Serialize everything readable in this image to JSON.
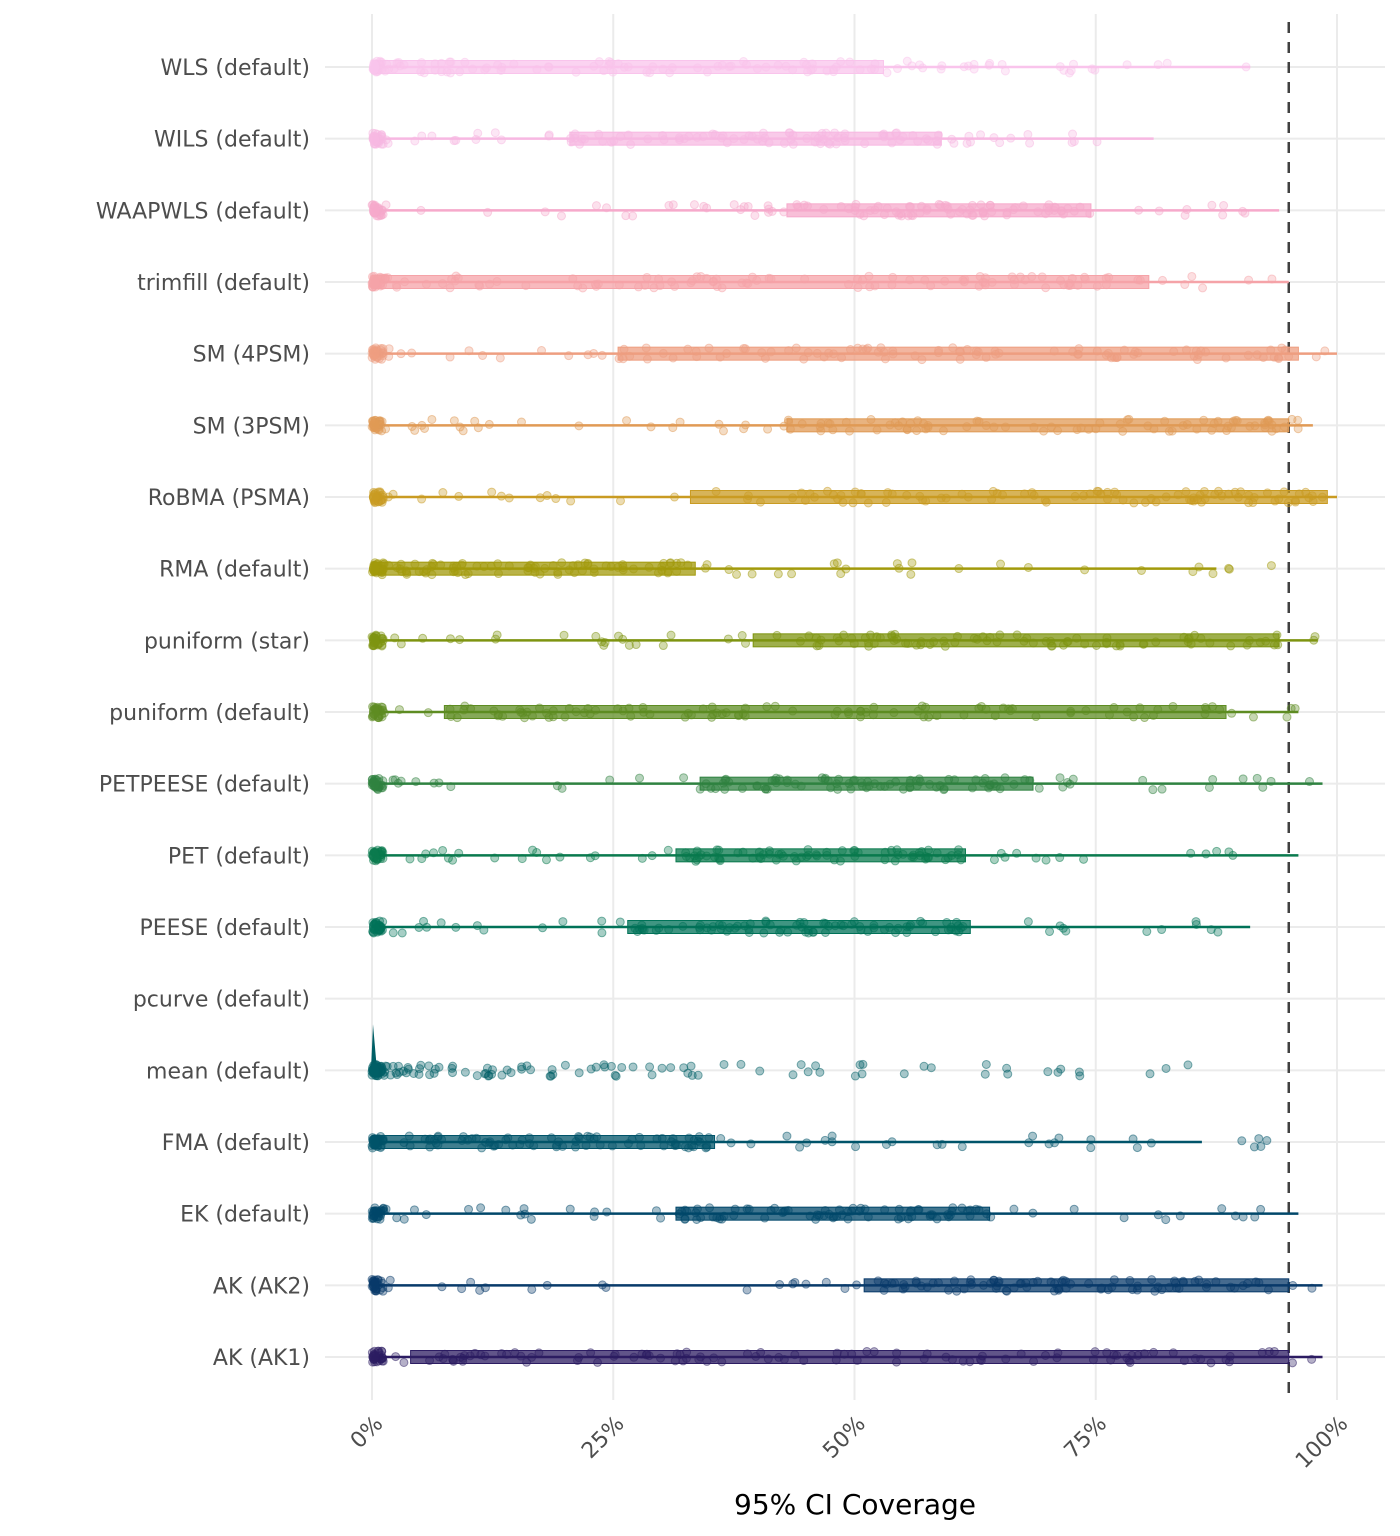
{
  "chart_data": {
    "type": "boxplot-jitter",
    "title": "",
    "xlabel": "95% CI Coverage",
    "ylabel": "",
    "xlim": [
      0,
      100
    ],
    "x_unit": "%",
    "x_ticks": [
      0,
      25,
      50,
      75,
      100
    ],
    "x_tick_labels": [
      "0%",
      "25%",
      "50%",
      "75%",
      "100%"
    ],
    "grid": true,
    "reference_line": {
      "value": 95,
      "style": "dashed",
      "color": "#404040"
    },
    "categories": [
      "WLS (default)",
      "WILS (default)",
      "WAAPWLS (default)",
      "trimfill (default)",
      "SM (4PSM)",
      "SM (3PSM)",
      "RoBMA (PSMA)",
      "RMA (default)",
      "puniform (star)",
      "puniform (default)",
      "PETPEESE (default)",
      "PET (default)",
      "PEESE (default)",
      "pcurve (default)",
      "mean (default)",
      "FMA (default)",
      "EK (default)",
      "AK (AK2)",
      "AK (AK1)"
    ],
    "series": [
      {
        "name": "WLS (default)",
        "color": "#F9C4EC",
        "whisker_low": 0,
        "q1": 0,
        "median": 28,
        "q3": 53,
        "whisker_high": 91,
        "point_max": 91
      },
      {
        "name": "WILS (default)",
        "color": "#F7B8E2",
        "whisker_low": 0,
        "q1": 20.5,
        "median": 40,
        "q3": 59,
        "whisker_high": 81,
        "point_max": 81
      },
      {
        "name": "WAAPWLS (default)",
        "color": "#F6A9CB",
        "whisker_low": 0,
        "q1": 43,
        "median": 60,
        "q3": 74.5,
        "whisker_high": 94,
        "point_max": 94
      },
      {
        "name": "trimfill (default)",
        "color": "#F5A3A8",
        "whisker_low": 0,
        "q1": 0,
        "median": 40,
        "q3": 80.5,
        "whisker_high": 95,
        "point_max": 95
      },
      {
        "name": "SM (4PSM)",
        "color": "#EE9E80",
        "whisker_low": 0,
        "q1": 25.5,
        "median": 80,
        "q3": 96,
        "whisker_high": 100,
        "point_max": 100
      },
      {
        "name": "SM (3PSM)",
        "color": "#E09A55",
        "whisker_low": 0,
        "q1": 43,
        "median": 80,
        "q3": 95,
        "whisker_high": 97.5,
        "point_max": 97.5
      },
      {
        "name": "RoBMA (PSMA)",
        "color": "#C99B22",
        "whisker_low": 0,
        "q1": 33,
        "median": 80,
        "q3": 99,
        "whisker_high": 100,
        "point_max": 100
      },
      {
        "name": "RMA (default)",
        "color": "#A29A0B",
        "whisker_low": 0,
        "q1": 0,
        "median": 5,
        "q3": 33.5,
        "whisker_high": 87.5,
        "point_max": 94
      },
      {
        "name": "puniform (star)",
        "color": "#7E9410",
        "whisker_low": 0,
        "q1": 39.5,
        "median": 75,
        "q3": 94,
        "whisker_high": 98,
        "point_max": 98
      },
      {
        "name": "puniform (default)",
        "color": "#5E8C22",
        "whisker_low": 0,
        "q1": 7.5,
        "median": 50,
        "q3": 88.5,
        "whisker_high": 96,
        "point_max": 96
      },
      {
        "name": "PETPEESE (default)",
        "color": "#2F8240",
        "whisker_low": 0,
        "q1": 34,
        "median": 50,
        "q3": 68.5,
        "whisker_high": 98.5,
        "point_max": 98.5
      },
      {
        "name": "PET (default)",
        "color": "#0A7A4E",
        "whisker_low": 0,
        "q1": 31.5,
        "median": 48,
        "q3": 61.5,
        "whisker_high": 96,
        "point_max": 96
      },
      {
        "name": "PEESE (default)",
        "color": "#007258",
        "whisker_low": 0,
        "q1": 26.5,
        "median": 45,
        "q3": 62,
        "whisker_high": 91,
        "point_max": 91
      },
      {
        "name": "pcurve (default)",
        "color": "#006A62",
        "empty": true
      },
      {
        "name": "mean (default)",
        "color": "#005F66",
        "whisker_low": 0,
        "q1": 0,
        "median": 0,
        "q3": 0,
        "whisker_high": 0,
        "point_max": 85.5,
        "spike": true
      },
      {
        "name": "FMA (default)",
        "color": "#00546A",
        "whisker_low": 0,
        "q1": 0,
        "median": 10,
        "q3": 35.5,
        "whisker_high": 86,
        "point_max": 97.5
      },
      {
        "name": "EK (default)",
        "color": "#00476A",
        "whisker_low": 0,
        "q1": 31.5,
        "median": 50,
        "q3": 64,
        "whisker_high": 96,
        "point_max": 96
      },
      {
        "name": "AK (AK2)",
        "color": "#083A6A",
        "whisker_low": 0,
        "q1": 51,
        "median": 85,
        "q3": 95,
        "whisker_high": 98.5,
        "point_max": 98.5
      },
      {
        "name": "AK (AK1)",
        "color": "#2C1C62",
        "whisker_low": 0,
        "q1": 4,
        "median": 70,
        "q3": 95,
        "whisker_high": 98.5,
        "point_max": 98.5
      }
    ]
  }
}
